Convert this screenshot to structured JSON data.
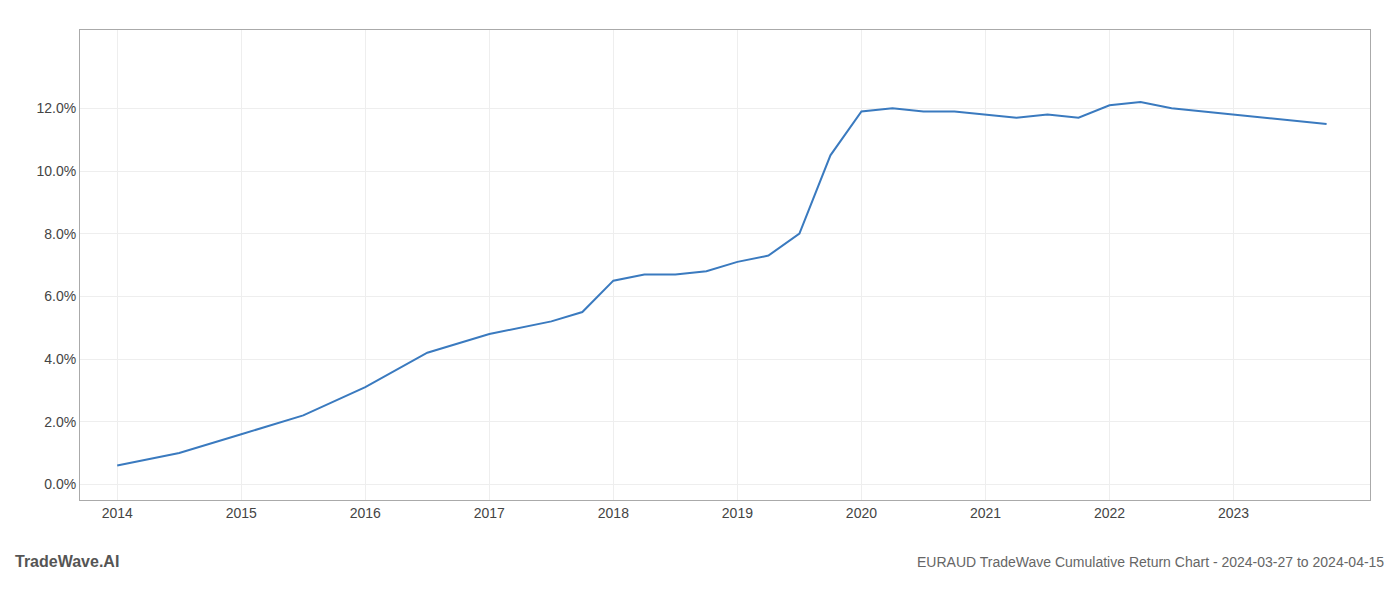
{
  "chart_data": {
    "type": "line",
    "title": "EURAUD TradeWave Cumulative Return Chart - 2024-03-27 to 2024-04-15",
    "annotations": [
      "TradeWave.AI"
    ],
    "x": [
      2014,
      2014.5,
      2015,
      2015.5,
      2016,
      2016.5,
      2017,
      2017.25,
      2017.5,
      2017.75,
      2018,
      2018.25,
      2018.5,
      2018.75,
      2019,
      2019.25,
      2019.5,
      2019.75,
      2020,
      2020.25,
      2020.5,
      2020.75,
      2021,
      2021.25,
      2021.5,
      2021.75,
      2022,
      2022.25,
      2022.5,
      2022.75,
      2023,
      2023.25,
      2023.5,
      2023.75
    ],
    "values": [
      0.006,
      0.01,
      0.016,
      0.022,
      0.031,
      0.042,
      0.048,
      0.05,
      0.052,
      0.055,
      0.065,
      0.067,
      0.067,
      0.068,
      0.071,
      0.073,
      0.08,
      0.105,
      0.119,
      0.12,
      0.119,
      0.119,
      0.118,
      0.117,
      0.118,
      0.117,
      0.121,
      0.122,
      0.12,
      0.119,
      0.118,
      0.117,
      0.116,
      0.115
    ],
    "color": "#3a7abf",
    "xlim": [
      2013.7,
      2024.1
    ],
    "ylim": [
      -0.005,
      0.145
    ],
    "xticks": [
      2014,
      2015,
      2016,
      2017,
      2018,
      2019,
      2020,
      2021,
      2022,
      2023
    ],
    "yticks": [
      {
        "value": 0.0,
        "label": "0.0%"
      },
      {
        "value": 0.02,
        "label": "2.0%"
      },
      {
        "value": 0.04,
        "label": "4.0%"
      },
      {
        "value": 0.06,
        "label": "6.0%"
      },
      {
        "value": 0.08,
        "label": "8.0%"
      },
      {
        "value": 0.1,
        "label": "10.0%"
      },
      {
        "value": 0.12,
        "label": "12.0%"
      }
    ],
    "grid": true
  }
}
